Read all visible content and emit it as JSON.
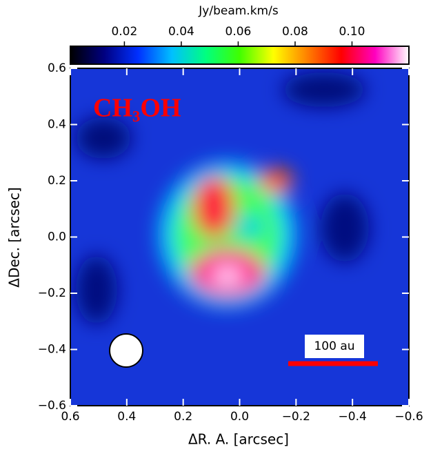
{
  "chart_data": {
    "type": "image",
    "xlabel": "ΔR. A. [arcsec]",
    "ylabel": "ΔDec. [arcsec]",
    "xlim": [
      0.6,
      -0.6
    ],
    "ylim": [
      -0.6,
      0.6
    ],
    "xticks": [
      0.6,
      0.4,
      0.2,
      {
        "value": 0,
        "label": "0.0"
      },
      {
        "value": -0.2,
        "label": "−0.2"
      },
      {
        "value": -0.4,
        "label": "−0.4"
      },
      {
        "value": -0.6,
        "label": "−0.6"
      }
    ],
    "yticks": [
      {
        "value": -0.6,
        "label": "−0.6"
      },
      {
        "value": -0.4,
        "label": "−0.4"
      },
      {
        "value": -0.2,
        "label": "−0.2"
      },
      {
        "value": 0,
        "label": "0.0"
      },
      0.2,
      0.4,
      0.6
    ],
    "colorbar": {
      "label": "Jy/beam.km/s",
      "lim": [
        0.001,
        0.12
      ],
      "ticks": [
        0.02,
        0.04,
        0.06,
        0.08,
        {
          "value": 0.1,
          "label": "0.10"
        }
      ],
      "colormap": [
        "#000000",
        "#000080",
        "#0030ff",
        "#00c0ff",
        "#00ff80",
        "#40ff00",
        "#ffff00",
        "#ff8000",
        "#ff0000",
        "#ff00c0",
        "#ffffff"
      ]
    },
    "annotation": "CH₃OH",
    "scalebar_label": "100 au"
  }
}
